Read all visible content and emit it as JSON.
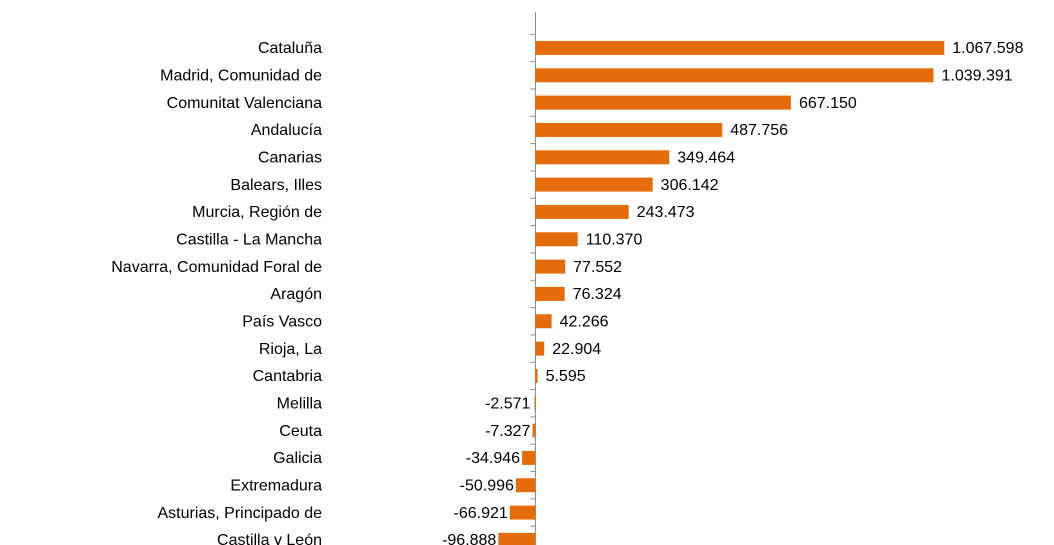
{
  "chart_data": {
    "type": "barh",
    "categories": [
      "Cataluña",
      "Madrid, Comunidad de",
      "Comunitat Valenciana",
      "Andalucía",
      "Canarias",
      "Balears, Illes",
      "Murcia, Región de",
      "Castilla - La Mancha",
      "Navarra, Comunidad Foral de",
      "Aragón",
      "País Vasco",
      "Rioja, La",
      "Cantabria",
      "Melilla",
      "Ceuta",
      "Galicia",
      "Extremadura",
      "Asturias, Principado de",
      "Castilla y León"
    ],
    "values": [
      1067598,
      1039391,
      667150,
      487756,
      349464,
      306142,
      243473,
      110370,
      77552,
      76324,
      42266,
      22904,
      5595,
      -2571,
      -7327,
      -34946,
      -50996,
      -66921,
      -96888
    ],
    "value_labels": [
      "1.067.598",
      "1.039.391",
      "667.150",
      "487.756",
      "349.464",
      "306.142",
      "243.473",
      "110.370",
      "77.552",
      "76.324",
      "42.266",
      "22.904",
      "5.595",
      "-2.571",
      "-7.327",
      "-34.946",
      "-50.996",
      "-66.921",
      "-96.888"
    ],
    "color": "#e46c0a",
    "xlim": [
      -150000,
      1200000
    ]
  }
}
